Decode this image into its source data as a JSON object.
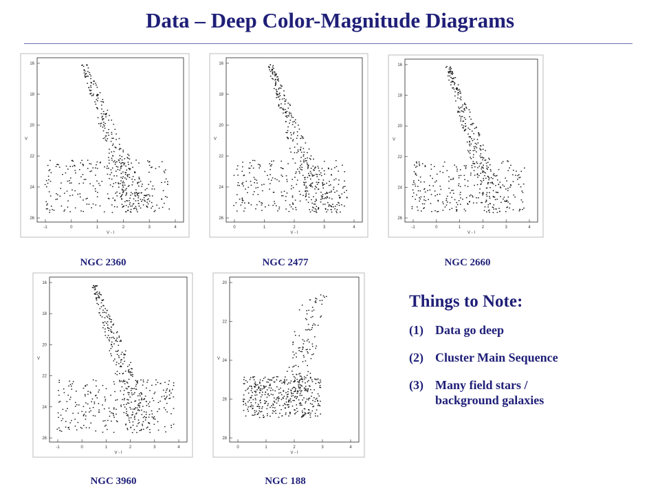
{
  "title": "Data – Deep Color-Magnitude Diagrams",
  "panels": [
    {
      "label": "NGC 2360",
      "y_axis_label": "V",
      "x_axis_label": "V - I",
      "y_ticks": [
        "16",
        "18",
        "20",
        "22",
        "24",
        "26"
      ],
      "x_ticks": [
        "-1",
        "0",
        "1",
        "2",
        "3",
        "4"
      ]
    },
    {
      "label": "NGC 2477",
      "y_axis_label": "V",
      "x_axis_label": "V - I",
      "y_ticks": [
        "16",
        "18",
        "20",
        "22",
        "24",
        "26"
      ],
      "x_ticks": [
        "0",
        "1",
        "2",
        "3",
        "4"
      ]
    },
    {
      "label": "NGC 2660",
      "y_axis_label": "V",
      "x_axis_label": "V - I",
      "y_ticks": [
        "16",
        "18",
        "20",
        "22",
        "24",
        "26"
      ],
      "x_ticks": [
        "-1",
        "0",
        "1",
        "2",
        "3",
        "4"
      ]
    },
    {
      "label": "NGC 3960",
      "y_axis_label": "V",
      "x_axis_label": "V - I",
      "y_ticks": [
        "16",
        "18",
        "20",
        "22",
        "24",
        "26"
      ],
      "x_ticks": [
        "-1",
        "0",
        "1",
        "2",
        "3",
        "4"
      ]
    },
    {
      "label": "NGC 188",
      "y_axis_label": "V",
      "x_axis_label": "V - I",
      "y_ticks": [
        "20",
        "22",
        "24",
        "26",
        "28"
      ],
      "x_ticks": [
        "0",
        "1",
        "2",
        "3",
        "4"
      ]
    }
  ],
  "notes": {
    "heading": "Things to Note:",
    "items": [
      {
        "number": "(1)",
        "text": "Data go deep"
      },
      {
        "number": "(2)",
        "text": "Cluster Main Sequence"
      },
      {
        "number": "(3)",
        "text": "Many field stars / background galaxies"
      }
    ]
  }
}
